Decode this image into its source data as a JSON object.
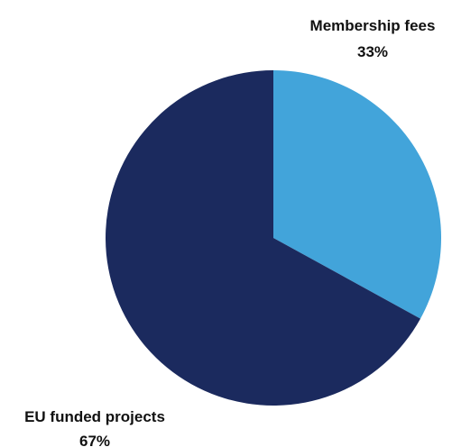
{
  "chart_data": {
    "type": "pie",
    "slices": [
      {
        "label": "Membership fees",
        "value": 33,
        "value_label": "33%",
        "color": "#42A4DA"
      },
      {
        "label": "EU funded projects",
        "value": 67,
        "value_label": "67%",
        "color": "#1B2A5E"
      }
    ],
    "start_angle_deg": 0,
    "direction": "clockwise",
    "legend": "none",
    "labels_position": "outside"
  }
}
